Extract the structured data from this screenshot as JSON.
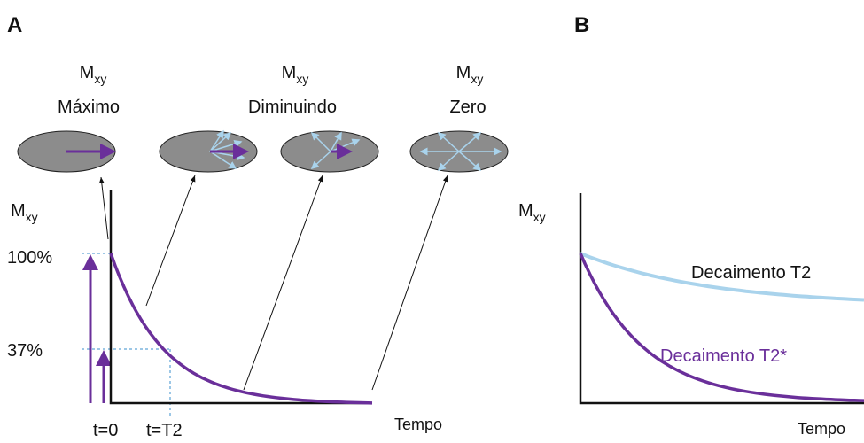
{
  "panels": [
    {
      "label": "A",
      "states": [
        {
          "symbol": "M",
          "subscript": "xy",
          "label": "Máximo"
        },
        {
          "symbol": "M",
          "subscript": "xy",
          "label": "Diminuindo"
        },
        {
          "symbol": "M",
          "subscript": "xy",
          "label": "Zero"
        }
      ],
      "y_axis": {
        "symbol": "M",
        "subscript": "xy"
      },
      "y_labels": [
        "100%",
        "37%"
      ],
      "x_labels": [
        "t=0",
        "t=T2"
      ],
      "x_axis": "Tempo"
    },
    {
      "label": "B",
      "y_axis": {
        "symbol": "M",
        "subscript": "xy"
      },
      "curves": [
        "Decaimento T2",
        "Decaimento T2*"
      ],
      "x_axis": "Tempo"
    }
  ]
}
